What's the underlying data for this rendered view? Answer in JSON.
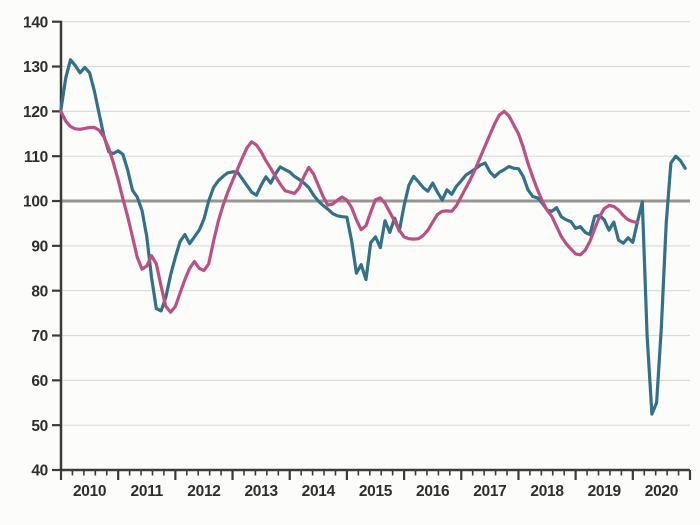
{
  "chart_data": {
    "type": "line",
    "grid": true,
    "legend": "none",
    "x_axis": {
      "tick_labels": [
        "2010",
        "2011",
        "2012",
        "2013",
        "2014",
        "2015",
        "2016",
        "2017",
        "2018",
        "2019",
        "2020"
      ],
      "start_year": 2010,
      "end_of_axis_year": 2021,
      "minor_tick_divisions_per_year": 5
    },
    "y_axis": {
      "min": 40,
      "max": 140,
      "tick_step": 10,
      "tick_labels": [
        "40",
        "50",
        "60",
        "70",
        "80",
        "90",
        "100",
        "110",
        "120",
        "130",
        "140"
      ]
    },
    "reference_line": {
      "value": 100,
      "color": "#97958f"
    },
    "series": [
      {
        "id": "teal-index-line",
        "color": "#33708a",
        "start": "2010-01",
        "frequency": "monthly",
        "values": [
          120.5,
          127.5,
          131.5,
          130.2,
          128.6,
          129.8,
          128.6,
          124.5,
          119.5,
          114.5,
          111.0,
          110.6,
          111.2,
          110.4,
          106.9,
          102.4,
          100.9,
          97.9,
          92.0,
          83.0,
          76.0,
          75.5,
          78.5,
          83.5,
          87.5,
          91.0,
          92.5,
          90.5,
          92.0,
          93.5,
          96.0,
          100.0,
          103.0,
          104.5,
          105.5,
          106.3,
          106.5,
          106.5,
          105.0,
          103.5,
          102.0,
          101.3,
          103.5,
          105.4,
          104.0,
          106.0,
          107.6,
          107.0,
          106.5,
          105.5,
          104.8,
          104.0,
          103.0,
          101.3,
          100.0,
          99.0,
          98.2,
          97.2,
          96.7,
          96.5,
          96.4,
          91.0,
          83.9,
          85.8,
          82.5,
          90.7,
          92.0,
          89.6,
          95.6,
          93.0,
          96.2,
          93.3,
          99.0,
          103.5,
          105.5,
          104.3,
          103.0,
          102.2,
          104.0,
          102.0,
          100.2,
          102.5,
          101.5,
          103.3,
          104.5,
          105.8,
          106.5,
          107.2,
          108.0,
          108.5,
          106.5,
          105.4,
          106.4,
          107.0,
          107.7,
          107.3,
          107.2,
          105.5,
          102.5,
          101.0,
          100.7,
          99.5,
          98.0,
          97.7,
          98.5,
          96.5,
          95.8,
          95.4,
          93.9,
          94.3,
          93.0,
          92.5,
          96.6,
          96.8,
          95.8,
          93.5,
          95.3,
          91.3,
          90.6,
          91.8,
          90.8,
          95.5,
          99.8,
          70.0,
          52.5,
          55.0,
          72.0,
          95.0,
          108.5,
          110.0,
          109.0,
          107.3
        ]
      },
      {
        "id": "pink-trend-line",
        "color": "#bb5083",
        "start": "2010-01",
        "frequency": "monthly",
        "values": [
          120.0,
          117.8,
          116.6,
          116.1,
          116.0,
          116.2,
          116.4,
          116.4,
          115.8,
          114.3,
          111.8,
          108.5,
          104.7,
          100.5,
          96.5,
          92.0,
          87.5,
          84.8,
          85.5,
          87.8,
          86.0,
          81.0,
          76.5,
          75.2,
          76.5,
          79.5,
          82.5,
          85.0,
          86.5,
          85.0,
          84.5,
          86.0,
          91.0,
          95.5,
          99.0,
          102.0,
          104.5,
          107.0,
          109.5,
          111.8,
          113.2,
          112.5,
          111.0,
          109.0,
          107.3,
          105.5,
          103.8,
          102.3,
          102.0,
          101.7,
          103.0,
          105.5,
          107.5,
          106.0,
          103.5,
          101.0,
          99.1,
          99.3,
          100.2,
          100.9,
          100.2,
          98.5,
          95.8,
          93.6,
          94.5,
          97.5,
          100.3,
          100.7,
          99.5,
          97.5,
          95.5,
          93.5,
          92.0,
          91.6,
          91.5,
          91.6,
          92.3,
          93.5,
          95.3,
          97.0,
          97.7,
          97.8,
          97.7,
          99.0,
          101.0,
          103.0,
          105.0,
          107.3,
          109.8,
          112.3,
          114.8,
          117.2,
          119.2,
          120.0,
          119.0,
          117.0,
          115.0,
          112.0,
          108.4,
          105.3,
          102.5,
          100.0,
          98.0,
          96.6,
          94.3,
          92.1,
          90.5,
          89.3,
          88.2,
          88.0,
          89.0,
          91.0,
          93.8,
          96.5,
          98.3,
          99.0,
          98.8,
          98.0,
          96.8,
          95.8,
          95.4,
          95.2
        ]
      }
    ],
    "style": {
      "background": "#fcfcfb",
      "gridline_color": "#dcdbd7",
      "axis_color": "#3b3b3b",
      "series_stroke_width": 3.2
    }
  }
}
